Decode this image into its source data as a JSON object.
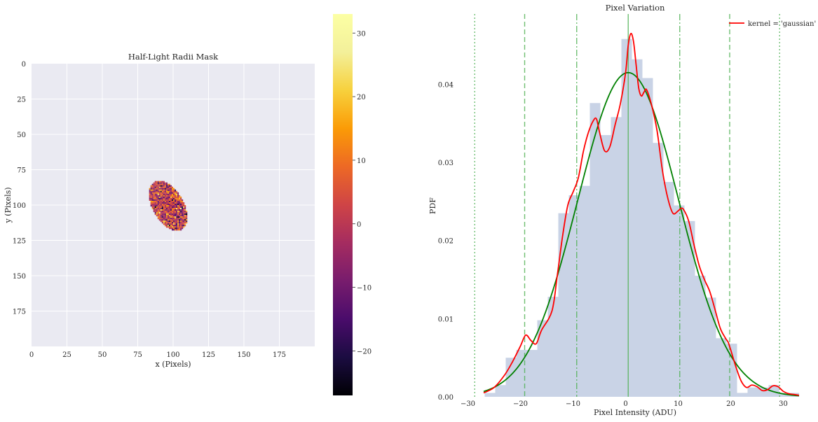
{
  "chart_data": [
    {
      "type": "heatmap",
      "title": "Half-Light Radii Mask",
      "xlabel": "x (Pixels)",
      "ylabel": "y (Pixels)",
      "xlim": [
        0,
        200
      ],
      "ylim": [
        200,
        0
      ],
      "xticks": [
        0,
        25,
        50,
        75,
        100,
        125,
        150,
        175
      ],
      "yticks": [
        0,
        25,
        50,
        75,
        100,
        125,
        150,
        175
      ],
      "mask_center": [
        96.5,
        100.5
      ],
      "mask_semi_axes": [
        11,
        19.5
      ],
      "mask_rotation_deg": -30,
      "colormap": "inferno",
      "colorbar": {
        "min": -27,
        "max": 33,
        "ticks": [
          30,
          20,
          10,
          0,
          -10,
          -20
        ]
      }
    },
    {
      "type": "bar",
      "title": "Pixel Variation",
      "xlabel": "Pixel Intensity (ADU)",
      "ylabel": "PDF",
      "xlim": [
        -31,
        33
      ],
      "ylim": [
        0,
        0.049
      ],
      "xticks": [
        -30,
        -20,
        -10,
        0,
        10,
        20,
        30
      ],
      "yticks": [
        0.0,
        0.01,
        0.02,
        0.03,
        0.04
      ],
      "ytick_labels": [
        "0.00",
        "0.01",
        "0.02",
        "0.03",
        "0.04"
      ],
      "histogram": {
        "bin_edges": [
          -26.8,
          -24.8,
          -22.8,
          -20.8,
          -18.8,
          -16.8,
          -14.8,
          -12.8,
          -10.8,
          -8.8,
          -6.8,
          -4.8,
          -2.8,
          -0.8,
          1.2,
          3.2,
          5.2,
          7.2,
          9.2,
          11.2,
          13.2,
          15.2,
          17.2,
          19.2,
          21.2,
          23.2,
          25.2,
          27.2,
          29.2,
          31.2,
          33.2
        ],
        "values": [
          0.0005,
          0.0015,
          0.005,
          0.006,
          0.006,
          0.0098,
          0.0128,
          0.0235,
          0.0258,
          0.027,
          0.0376,
          0.0335,
          0.0358,
          0.0458,
          0.0432,
          0.0408,
          0.0325,
          0.0275,
          0.0245,
          0.0225,
          0.0155,
          0.0127,
          0.0075,
          0.0068,
          0.0005,
          0.0012,
          0.0012,
          0.0015,
          0.0005,
          0.0005
        ]
      },
      "series": [
        {
          "name": "kernel = 'gaussian'",
          "color": "#ff0000",
          "x": [
            -27,
            -25,
            -23,
            -21.5,
            -20,
            -19,
            -18,
            -17,
            -16,
            -14,
            -13,
            -12,
            -11,
            -10,
            -9,
            -8,
            -7,
            -6,
            -5.5,
            -5,
            -4,
            -3,
            -2,
            -1,
            0,
            0.5,
            1,
            1.5,
            2,
            2.5,
            3,
            3.5,
            4,
            5,
            6,
            7,
            8,
            9,
            10,
            10.5,
            11,
            12,
            13,
            14,
            15,
            16,
            17,
            18,
            19,
            19.5,
            20,
            21,
            22,
            23,
            24,
            25,
            26,
            27,
            28,
            29,
            30,
            31,
            32,
            33
          ],
          "y": [
            0.0005,
            0.0012,
            0.0028,
            0.0045,
            0.0065,
            0.0079,
            0.0072,
            0.0068,
            0.0085,
            0.011,
            0.0155,
            0.0205,
            0.0245,
            0.0262,
            0.028,
            0.0315,
            0.034,
            0.0355,
            0.0355,
            0.034,
            0.0315,
            0.032,
            0.0348,
            0.0375,
            0.0415,
            0.045,
            0.0465,
            0.0455,
            0.0425,
            0.0395,
            0.0385,
            0.039,
            0.0393,
            0.0372,
            0.034,
            0.029,
            0.0255,
            0.0235,
            0.0238,
            0.0241,
            0.024,
            0.0225,
            0.0195,
            0.0168,
            0.015,
            0.0135,
            0.0112,
            0.0088,
            0.0075,
            0.007,
            0.006,
            0.0038,
            0.002,
            0.0012,
            0.0015,
            0.0013,
            0.0008,
            0.0009,
            0.0014,
            0.0013,
            0.0007,
            0.0004,
            0.0003,
            0.0002
          ]
        },
        {
          "name": "",
          "color": "#008000",
          "fit_mean": 0.5,
          "fit_sigma": 9.6,
          "fit_peak": 0.0415
        }
      ],
      "vlines": [
        {
          "x": 0.5,
          "style": "solid"
        },
        {
          "x": -9.3,
          "style": "dashdot"
        },
        {
          "x": 10.3,
          "style": "dashdot"
        },
        {
          "x": -19.2,
          "style": "dashed"
        },
        {
          "x": 19.8,
          "style": "dashed"
        },
        {
          "x": -28.7,
          "style": "dotted"
        },
        {
          "x": 29.3,
          "style": "dotted"
        }
      ],
      "legend": {
        "placement": "top-right",
        "label": "kernel = 'gaussian'"
      },
      "grid": false
    }
  ]
}
